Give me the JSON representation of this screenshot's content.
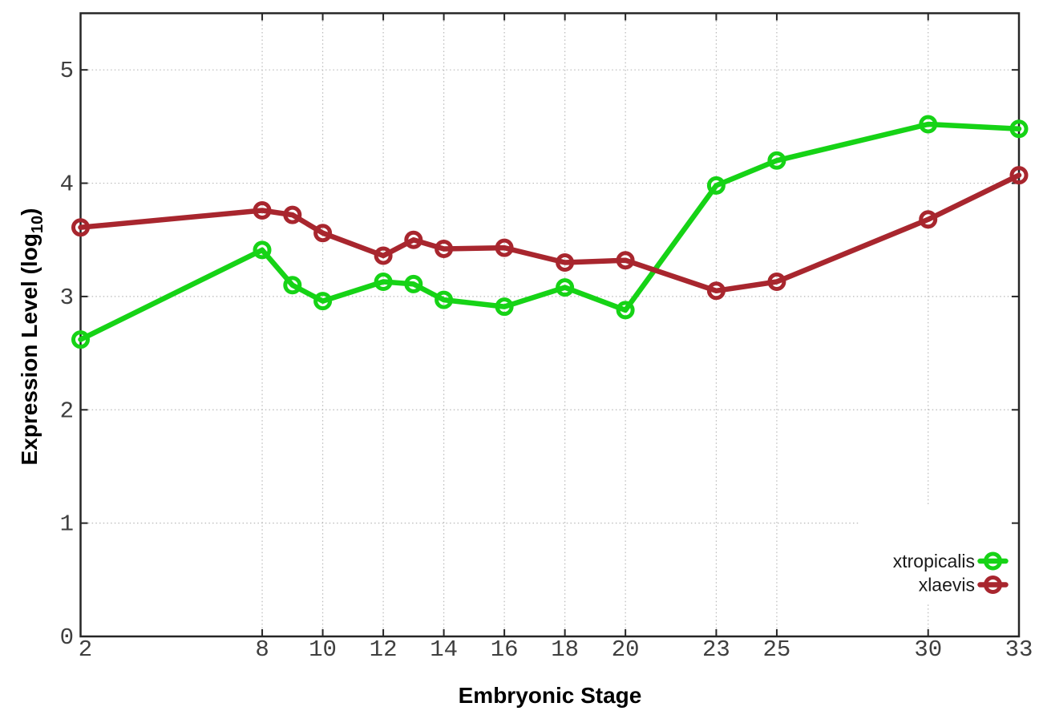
{
  "figure": {
    "xlabel": "Embryonic Stage",
    "ylabel_prefix": "Expression Level (log",
    "ylabel_sub": "10",
    "ylabel_suffix": ")"
  },
  "chart_data": {
    "type": "line",
    "title": "",
    "xlabel": "Embryonic Stage",
    "ylabel": "Expression Level (log10)",
    "x": [
      2,
      8,
      9,
      10,
      12,
      13,
      14,
      16,
      18,
      20,
      23,
      25,
      30,
      33
    ],
    "series": [
      {
        "name": "xtropicalis",
        "color": "#16d316",
        "values": [
          2.62,
          3.41,
          3.1,
          2.96,
          3.13,
          3.11,
          2.97,
          2.91,
          3.08,
          2.88,
          3.98,
          4.2,
          4.52,
          4.48
        ]
      },
      {
        "name": "xlaevis",
        "color": "#a8262e",
        "values": [
          3.61,
          3.76,
          3.72,
          3.56,
          3.36,
          3.5,
          3.42,
          3.43,
          3.3,
          3.32,
          3.05,
          3.13,
          3.68,
          4.07
        ]
      }
    ],
    "xlim": [
      2,
      33
    ],
    "ylim": [
      0,
      5.5
    ],
    "x_ticks": [
      2,
      8,
      10,
      12,
      14,
      16,
      18,
      20,
      23,
      25,
      30,
      33
    ],
    "y_ticks": [
      0,
      1,
      2,
      3,
      4,
      5
    ],
    "grid": true,
    "grid_style": "dotted",
    "legend_position": "inside-bottom-right",
    "marker": "open-circle",
    "colors": {
      "grid": "#b9b9b9",
      "border": "#262626",
      "tick_text": "#3f3f3f",
      "title_text": "#000000",
      "legend_text": "#1a1a1a",
      "background": "#ffffff"
    }
  }
}
